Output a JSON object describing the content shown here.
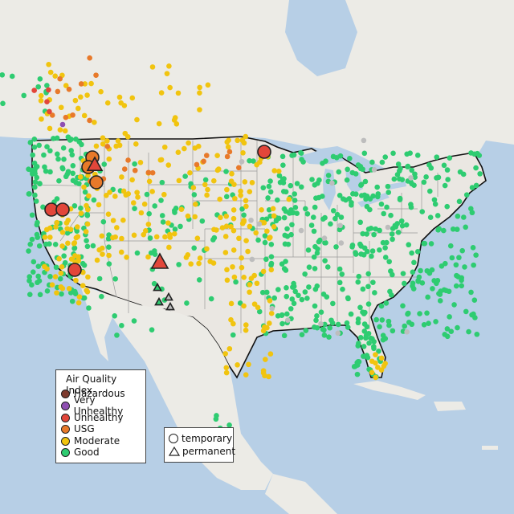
{
  "map": {
    "colors": {
      "water": "#b7cfe6",
      "land": "#ece9e4",
      "us_land": "#e9e6e1",
      "border": "#111111",
      "state_line": "#9a9a9a",
      "hazardous": "#7e3b2e",
      "very_unhealthy": "#8f4fb2",
      "unhealthy": "#e2463a",
      "usg": "#e8792a",
      "moderate": "#f1c40f",
      "good": "#2ecc71",
      "no_data": "#bdbdbd"
    }
  },
  "legend": {
    "title": "Air Quality Index",
    "items": [
      {
        "label": "Hazardous",
        "color": "#7e3b2e"
      },
      {
        "label": "Very Unhealthy",
        "color": "#8f4fb2"
      },
      {
        "label": "Unhealthy",
        "color": "#e2463a"
      },
      {
        "label": "USG",
        "color": "#e8792a"
      },
      {
        "label": "Moderate",
        "color": "#f1c40f"
      },
      {
        "label": "Good",
        "color": "#2ecc71"
      }
    ]
  },
  "monitor_legend": {
    "temporary_label": "temporary",
    "permanent_label": "permanent",
    "temporary_icon": "circle-icon",
    "permanent_icon": "triangle-icon"
  }
}
